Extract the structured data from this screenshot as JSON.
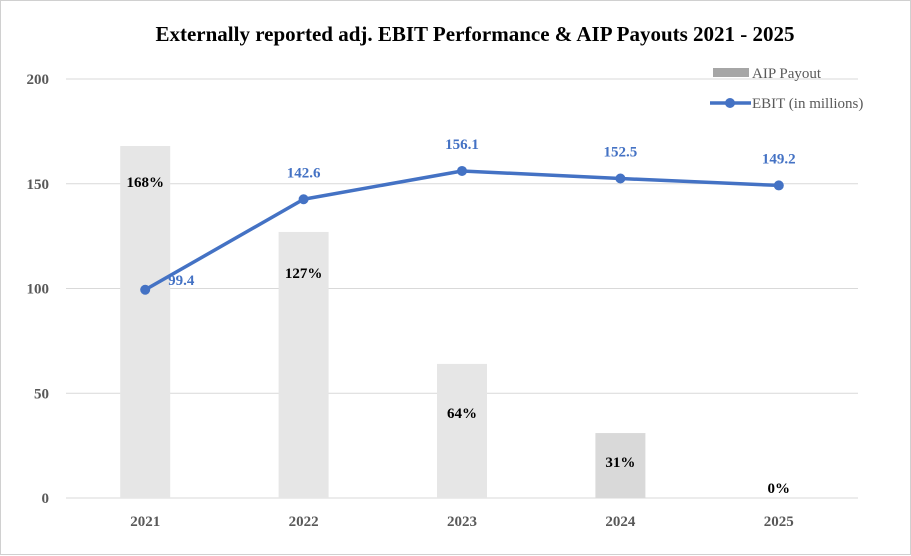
{
  "chart_data": {
    "type": "bar+line",
    "title": "Externally reported adj. EBIT Performance & AIP Payouts 2021 - 2025",
    "categories": [
      "2021",
      "2022",
      "2023",
      "2024",
      "2025"
    ],
    "ylim": [
      0,
      200
    ],
    "yticks": [
      "0",
      "50",
      "100",
      "150",
      "200"
    ],
    "grid": true,
    "legend": "top-right",
    "series": [
      {
        "name": "AIP Payout",
        "type": "bar",
        "values": [
          168,
          127,
          64,
          31,
          0
        ],
        "labels": [
          "168%",
          "127%",
          "64%",
          "31%",
          "0%"
        ],
        "color": "#e6e6e6",
        "legend_color": "#a6a6a6"
      },
      {
        "name": "EBIT (in millions)",
        "type": "line",
        "values": [
          99.4,
          142.6,
          156.1,
          152.5,
          149.2
        ],
        "labels": [
          "99.4",
          "142.6",
          "156.1",
          "152.5",
          "149.2"
        ],
        "color": "#4472c4"
      }
    ]
  }
}
